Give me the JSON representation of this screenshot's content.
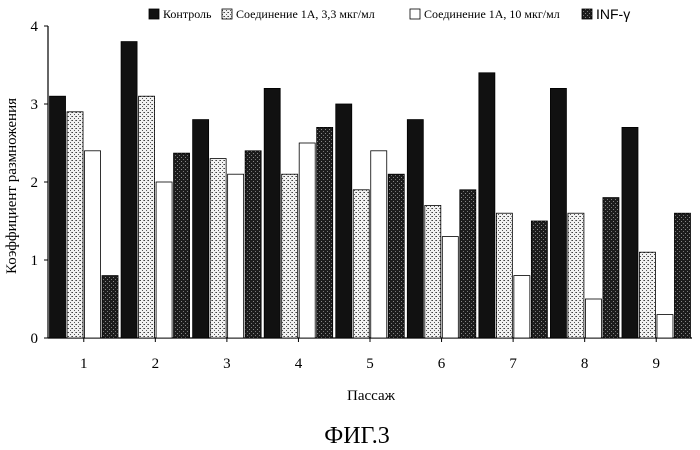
{
  "figure_caption": "ФИГ.3",
  "chart_data": {
    "type": "bar",
    "xlabel": "Пассаж",
    "ylabel": "Коэффициент размножения",
    "ylim": [
      0,
      4
    ],
    "yticks": [
      "0",
      "1",
      "2",
      "3",
      "4"
    ],
    "categories": [
      "1",
      "2",
      "3",
      "4",
      "5",
      "6",
      "7",
      "8",
      "9"
    ],
    "legend_position": "top",
    "grid": false,
    "series": [
      {
        "name": "Контроль",
        "style": "solid-black",
        "color": "#111111",
        "values": [
          3.1,
          3.8,
          2.8,
          3.2,
          3.0,
          2.8,
          3.4,
          3.2,
          2.7
        ]
      },
      {
        "name": "Соединение 1А, 3,3 мкг/мл",
        "style": "light-stipple",
        "color": "#bbbbbb",
        "values": [
          2.9,
          3.1,
          2.3,
          2.1,
          1.9,
          1.7,
          1.6,
          1.6,
          1.1
        ]
      },
      {
        "name": "Соединение 1А, 10 мкг/мл",
        "style": "white",
        "color": "#ffffff",
        "values": [
          2.4,
          2.0,
          2.1,
          2.5,
          2.4,
          1.3,
          0.8,
          0.5,
          0.3
        ]
      },
      {
        "name": "INF-γ",
        "style": "dark-stipple",
        "color": "#333333",
        "values": [
          0.8,
          2.37,
          2.4,
          2.7,
          2.1,
          1.9,
          1.5,
          1.8,
          1.6
        ]
      }
    ]
  }
}
